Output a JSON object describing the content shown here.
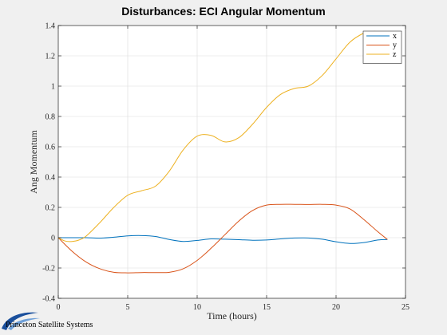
{
  "chart_data": {
    "type": "line",
    "title": "Disturbances: ECI Angular Momentum",
    "xlabel": "Time (hours)",
    "ylabel": "Ang Momentum",
    "xlim": [
      0,
      25
    ],
    "ylim": [
      -0.4,
      1.4
    ],
    "xticks": [
      0,
      5,
      10,
      15,
      20,
      25
    ],
    "yticks": [
      -0.4,
      -0.2,
      0,
      0.2,
      0.4,
      0.6,
      0.8,
      1,
      1.2,
      1.4
    ],
    "xtick_labels": [
      "0",
      "5",
      "10",
      "15",
      "20",
      "25"
    ],
    "ytick_labels": [
      "-0.4",
      "-0.2",
      "0",
      "0.2",
      "0.4",
      "0.6",
      "0.8",
      "1",
      "1.2",
      "1.4"
    ],
    "grid": true,
    "legend_position": "top-right",
    "series": [
      {
        "name": "x",
        "color": "#0072bd",
        "x": [
          0,
          1,
          2,
          3,
          4,
          5,
          6,
          7,
          8,
          9,
          10,
          11,
          12,
          13,
          14,
          15,
          16,
          17,
          18,
          19,
          20,
          21,
          22,
          23,
          23.7
        ],
        "y": [
          0.0,
          0.0,
          0.0,
          -0.003,
          0.003,
          0.012,
          0.014,
          0.008,
          -0.012,
          -0.025,
          -0.018,
          -0.008,
          -0.01,
          -0.013,
          -0.017,
          -0.015,
          -0.008,
          -0.002,
          -0.002,
          -0.01,
          -0.027,
          -0.038,
          -0.032,
          -0.015,
          -0.012
        ]
      },
      {
        "name": "y",
        "color": "#d95319",
        "x": [
          0,
          1,
          2,
          3,
          4,
          5,
          6,
          7,
          8,
          9,
          10,
          11,
          12,
          13,
          14,
          15,
          16,
          17,
          18,
          19,
          20,
          21,
          22,
          23,
          23.7
        ],
        "y": [
          0.0,
          -0.09,
          -0.16,
          -0.205,
          -0.228,
          -0.232,
          -0.23,
          -0.23,
          -0.228,
          -0.205,
          -0.15,
          -0.07,
          0.02,
          0.11,
          0.18,
          0.215,
          0.22,
          0.22,
          0.219,
          0.22,
          0.215,
          0.19,
          0.12,
          0.04,
          -0.012
        ]
      },
      {
        "name": "z",
        "color": "#edb120",
        "x": [
          0,
          0.5,
          1,
          1.5,
          2,
          3,
          4,
          5,
          6,
          7,
          8,
          9,
          10,
          11,
          12,
          13,
          14,
          15,
          16,
          17,
          18,
          19,
          20,
          21,
          22,
          22.6,
          23,
          23.7
        ],
        "y": [
          0.0,
          -0.022,
          -0.025,
          -0.015,
          0.01,
          0.1,
          0.2,
          0.28,
          0.31,
          0.34,
          0.44,
          0.58,
          0.67,
          0.675,
          0.632,
          0.66,
          0.75,
          0.86,
          0.945,
          0.985,
          1.0,
          1.07,
          1.18,
          1.29,
          1.35,
          1.36,
          1.35,
          1.26
        ]
      }
    ]
  },
  "branding": {
    "logo_text": "Princeton Satellite Systems"
  }
}
